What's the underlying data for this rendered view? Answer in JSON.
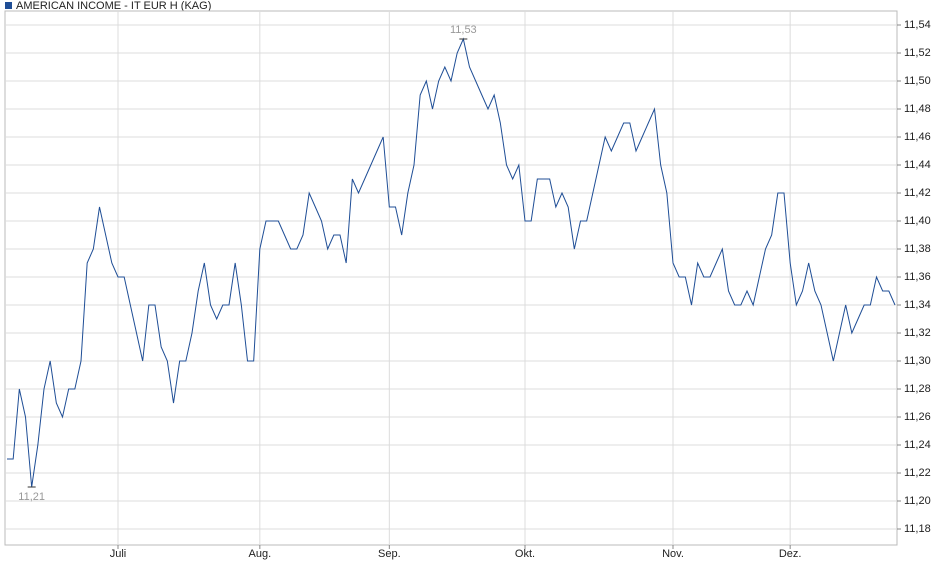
{
  "chart_data": {
    "type": "line",
    "title": "AMERICAN INCOME - IT EUR H (KAG)",
    "categories": [
      null,
      null,
      null,
      null,
      null,
      null,
      null,
      null,
      null,
      null,
      null,
      null,
      null,
      null,
      null,
      null,
      null,
      null,
      "Juli",
      null,
      null,
      null,
      null,
      null,
      null,
      null,
      null,
      null,
      null,
      null,
      null,
      null,
      null,
      null,
      null,
      null,
      null,
      null,
      null,
      null,
      null,
      "Aug.",
      null,
      null,
      null,
      null,
      null,
      null,
      null,
      null,
      null,
      null,
      null,
      null,
      null,
      null,
      null,
      null,
      null,
      null,
      null,
      null,
      "Sep.",
      null,
      null,
      null,
      null,
      null,
      null,
      null,
      null,
      null,
      null,
      null,
      null,
      null,
      null,
      null,
      null,
      null,
      null,
      null,
      null,
      null,
      "Okt.",
      null,
      null,
      null,
      null,
      null,
      null,
      null,
      null,
      null,
      null,
      null,
      null,
      null,
      null,
      null,
      null,
      null,
      null,
      null,
      null,
      null,
      null,
      null,
      "Nov.",
      null,
      null,
      null,
      null,
      null,
      null,
      null,
      null,
      null,
      null,
      null,
      null,
      null,
      null,
      null,
      null,
      null,
      null,
      "Dez.",
      null,
      null,
      null,
      null,
      null,
      null,
      null,
      null,
      null,
      null,
      null,
      null,
      null,
      null,
      null,
      null,
      null
    ],
    "series": [
      {
        "name": "AMERICAN INCOME - IT EUR H (KAG)",
        "color": "#1f4e96",
        "values": [
          11.23,
          11.23,
          11.28,
          11.26,
          11.21,
          11.24,
          11.28,
          11.3,
          11.27,
          11.26,
          11.28,
          11.28,
          11.3,
          11.37,
          11.38,
          11.41,
          11.39,
          11.37,
          11.36,
          11.36,
          11.34,
          11.32,
          11.3,
          11.34,
          11.34,
          11.31,
          11.3,
          11.27,
          11.3,
          11.3,
          11.32,
          11.35,
          11.37,
          11.34,
          11.33,
          11.34,
          11.34,
          11.37,
          11.34,
          11.3,
          11.3,
          11.38,
          11.4,
          11.4,
          11.4,
          11.39,
          11.38,
          11.38,
          11.39,
          11.42,
          11.41,
          11.4,
          11.38,
          11.39,
          11.39,
          11.37,
          11.43,
          11.42,
          11.43,
          11.44,
          11.45,
          11.46,
          11.41,
          11.41,
          11.39,
          11.42,
          11.44,
          11.49,
          11.5,
          11.48,
          11.5,
          11.51,
          11.5,
          11.52,
          11.53,
          11.51,
          11.5,
          11.49,
          11.48,
          11.49,
          11.47,
          11.44,
          11.43,
          11.44,
          11.4,
          11.4,
          11.43,
          11.43,
          11.43,
          11.41,
          11.42,
          11.41,
          11.38,
          11.4,
          11.4,
          11.42,
          11.44,
          11.46,
          11.45,
          11.46,
          11.47,
          11.47,
          11.45,
          11.46,
          11.47,
          11.48,
          11.44,
          11.42,
          11.37,
          11.36,
          11.36,
          11.34,
          11.37,
          11.36,
          11.36,
          11.37,
          11.38,
          11.35,
          11.34,
          11.34,
          11.35,
          11.34,
          11.36,
          11.38,
          11.39,
          11.42,
          11.42,
          11.37,
          11.34,
          11.35,
          11.37,
          11.35,
          11.34,
          11.32,
          11.3,
          11.32,
          11.34,
          11.32,
          11.33,
          11.34,
          11.34,
          11.36,
          11.35,
          11.35,
          11.34
        ]
      }
    ],
    "annotations": [
      {
        "label": "11,53",
        "value": 11.53
      },
      {
        "label": "11,21",
        "value": 11.21
      }
    ],
    "ylim": [
      11.17,
      11.55
    ],
    "yticks": [
      {
        "value": 11.18,
        "label": "11,18"
      },
      {
        "value": 11.2,
        "label": "11,20"
      },
      {
        "value": 11.22,
        "label": "11,22"
      },
      {
        "value": 11.24,
        "label": "11,24"
      },
      {
        "value": 11.26,
        "label": "11,26"
      },
      {
        "value": 11.28,
        "label": "11,28"
      },
      {
        "value": 11.3,
        "label": "11,30"
      },
      {
        "value": 11.32,
        "label": "11,32"
      },
      {
        "value": 11.34,
        "label": "11,34"
      },
      {
        "value": 11.36,
        "label": "11,36"
      },
      {
        "value": 11.38,
        "label": "11,38"
      },
      {
        "value": 11.4,
        "label": "11,40"
      },
      {
        "value": 11.42,
        "label": "11,42"
      },
      {
        "value": 11.44,
        "label": "11,44"
      },
      {
        "value": 11.46,
        "label": "11,46"
      },
      {
        "value": 11.48,
        "label": "11,48"
      },
      {
        "value": 11.5,
        "label": "11,50"
      },
      {
        "value": 11.52,
        "label": "11,52"
      },
      {
        "value": 11.54,
        "label": "11,54"
      }
    ],
    "grid": true
  }
}
